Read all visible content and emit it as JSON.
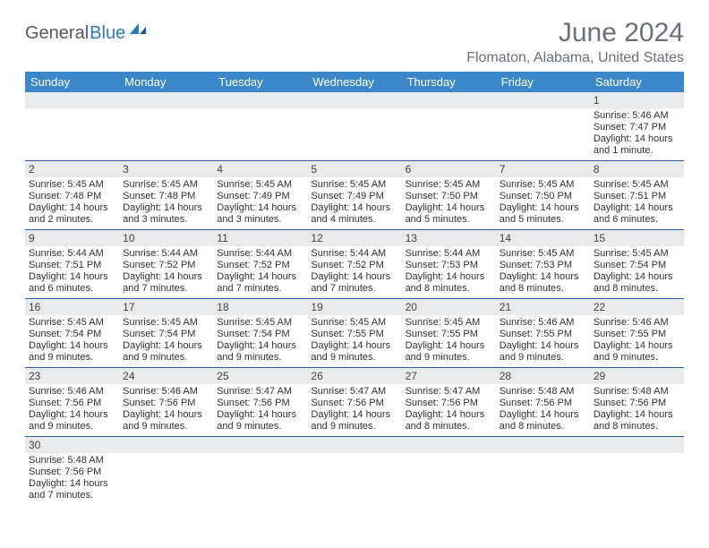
{
  "brand": {
    "part1": "General",
    "part2": "Blue"
  },
  "title": "June 2024",
  "location": "Flomaton, Alabama, United States",
  "colors": {
    "header_bg": "#3b87c8",
    "header_text": "#ffffff",
    "daynum_bg": "#e9eaeb",
    "cell_border": "#2d5fa0",
    "title_color": "#6a7077",
    "brand_gray": "#555a5f",
    "brand_blue": "#2d78c2"
  },
  "weekdays": [
    "Sunday",
    "Monday",
    "Tuesday",
    "Wednesday",
    "Thursday",
    "Friday",
    "Saturday"
  ],
  "weeks": [
    [
      null,
      null,
      null,
      null,
      null,
      null,
      {
        "n": "1",
        "sr": "Sunrise: 5:46 AM",
        "ss": "Sunset: 7:47 PM",
        "d1": "Daylight: 14 hours",
        "d2": "and 1 minute."
      }
    ],
    [
      {
        "n": "2",
        "sr": "Sunrise: 5:45 AM",
        "ss": "Sunset: 7:48 PM",
        "d1": "Daylight: 14 hours",
        "d2": "and 2 minutes."
      },
      {
        "n": "3",
        "sr": "Sunrise: 5:45 AM",
        "ss": "Sunset: 7:48 PM",
        "d1": "Daylight: 14 hours",
        "d2": "and 3 minutes."
      },
      {
        "n": "4",
        "sr": "Sunrise: 5:45 AM",
        "ss": "Sunset: 7:49 PM",
        "d1": "Daylight: 14 hours",
        "d2": "and 3 minutes."
      },
      {
        "n": "5",
        "sr": "Sunrise: 5:45 AM",
        "ss": "Sunset: 7:49 PM",
        "d1": "Daylight: 14 hours",
        "d2": "and 4 minutes."
      },
      {
        "n": "6",
        "sr": "Sunrise: 5:45 AM",
        "ss": "Sunset: 7:50 PM",
        "d1": "Daylight: 14 hours",
        "d2": "and 5 minutes."
      },
      {
        "n": "7",
        "sr": "Sunrise: 5:45 AM",
        "ss": "Sunset: 7:50 PM",
        "d1": "Daylight: 14 hours",
        "d2": "and 5 minutes."
      },
      {
        "n": "8",
        "sr": "Sunrise: 5:45 AM",
        "ss": "Sunset: 7:51 PM",
        "d1": "Daylight: 14 hours",
        "d2": "and 6 minutes."
      }
    ],
    [
      {
        "n": "9",
        "sr": "Sunrise: 5:44 AM",
        "ss": "Sunset: 7:51 PM",
        "d1": "Daylight: 14 hours",
        "d2": "and 6 minutes."
      },
      {
        "n": "10",
        "sr": "Sunrise: 5:44 AM",
        "ss": "Sunset: 7:52 PM",
        "d1": "Daylight: 14 hours",
        "d2": "and 7 minutes."
      },
      {
        "n": "11",
        "sr": "Sunrise: 5:44 AM",
        "ss": "Sunset: 7:52 PM",
        "d1": "Daylight: 14 hours",
        "d2": "and 7 minutes."
      },
      {
        "n": "12",
        "sr": "Sunrise: 5:44 AM",
        "ss": "Sunset: 7:52 PM",
        "d1": "Daylight: 14 hours",
        "d2": "and 7 minutes."
      },
      {
        "n": "13",
        "sr": "Sunrise: 5:44 AM",
        "ss": "Sunset: 7:53 PM",
        "d1": "Daylight: 14 hours",
        "d2": "and 8 minutes."
      },
      {
        "n": "14",
        "sr": "Sunrise: 5:45 AM",
        "ss": "Sunset: 7:53 PM",
        "d1": "Daylight: 14 hours",
        "d2": "and 8 minutes."
      },
      {
        "n": "15",
        "sr": "Sunrise: 5:45 AM",
        "ss": "Sunset: 7:54 PM",
        "d1": "Daylight: 14 hours",
        "d2": "and 8 minutes."
      }
    ],
    [
      {
        "n": "16",
        "sr": "Sunrise: 5:45 AM",
        "ss": "Sunset: 7:54 PM",
        "d1": "Daylight: 14 hours",
        "d2": "and 9 minutes."
      },
      {
        "n": "17",
        "sr": "Sunrise: 5:45 AM",
        "ss": "Sunset: 7:54 PM",
        "d1": "Daylight: 14 hours",
        "d2": "and 9 minutes."
      },
      {
        "n": "18",
        "sr": "Sunrise: 5:45 AM",
        "ss": "Sunset: 7:54 PM",
        "d1": "Daylight: 14 hours",
        "d2": "and 9 minutes."
      },
      {
        "n": "19",
        "sr": "Sunrise: 5:45 AM",
        "ss": "Sunset: 7:55 PM",
        "d1": "Daylight: 14 hours",
        "d2": "and 9 minutes."
      },
      {
        "n": "20",
        "sr": "Sunrise: 5:45 AM",
        "ss": "Sunset: 7:55 PM",
        "d1": "Daylight: 14 hours",
        "d2": "and 9 minutes."
      },
      {
        "n": "21",
        "sr": "Sunrise: 5:46 AM",
        "ss": "Sunset: 7:55 PM",
        "d1": "Daylight: 14 hours",
        "d2": "and 9 minutes."
      },
      {
        "n": "22",
        "sr": "Sunrise: 5:46 AM",
        "ss": "Sunset: 7:55 PM",
        "d1": "Daylight: 14 hours",
        "d2": "and 9 minutes."
      }
    ],
    [
      {
        "n": "23",
        "sr": "Sunrise: 5:46 AM",
        "ss": "Sunset: 7:56 PM",
        "d1": "Daylight: 14 hours",
        "d2": "and 9 minutes."
      },
      {
        "n": "24",
        "sr": "Sunrise: 5:46 AM",
        "ss": "Sunset: 7:56 PM",
        "d1": "Daylight: 14 hours",
        "d2": "and 9 minutes."
      },
      {
        "n": "25",
        "sr": "Sunrise: 5:47 AM",
        "ss": "Sunset: 7:56 PM",
        "d1": "Daylight: 14 hours",
        "d2": "and 9 minutes."
      },
      {
        "n": "26",
        "sr": "Sunrise: 5:47 AM",
        "ss": "Sunset: 7:56 PM",
        "d1": "Daylight: 14 hours",
        "d2": "and 9 minutes."
      },
      {
        "n": "27",
        "sr": "Sunrise: 5:47 AM",
        "ss": "Sunset: 7:56 PM",
        "d1": "Daylight: 14 hours",
        "d2": "and 8 minutes."
      },
      {
        "n": "28",
        "sr": "Sunrise: 5:48 AM",
        "ss": "Sunset: 7:56 PM",
        "d1": "Daylight: 14 hours",
        "d2": "and 8 minutes."
      },
      {
        "n": "29",
        "sr": "Sunrise: 5:48 AM",
        "ss": "Sunset: 7:56 PM",
        "d1": "Daylight: 14 hours",
        "d2": "and 8 minutes."
      }
    ],
    [
      {
        "n": "30",
        "sr": "Sunrise: 5:48 AM",
        "ss": "Sunset: 7:56 PM",
        "d1": "Daylight: 14 hours",
        "d2": "and 7 minutes."
      },
      null,
      null,
      null,
      null,
      null,
      null
    ]
  ]
}
